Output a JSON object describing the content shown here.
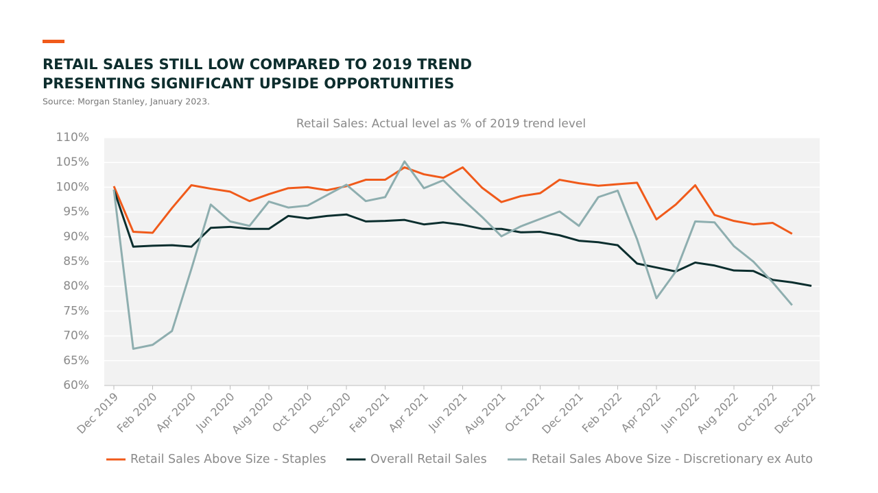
{
  "chart_data": {
    "type": "line",
    "title": [
      "RETAIL SALES STILL LOW COMPARED TO 2019 TREND",
      "PRESENTING SIGNIFICANT UPSIDE OPPORTUNITIES"
    ],
    "source": "Source: Morgan Stanley, January 2023.",
    "subtitle": "Retail Sales: Actual level as % of 2019 trend level",
    "categories": [
      "Dec 2019",
      null,
      "Feb 2020",
      null,
      "Apr 2020",
      null,
      "Jun 2020",
      null,
      "Aug 2020",
      null,
      "Oct 2020",
      null,
      "Dec 2020",
      null,
      "Feb 2021",
      null,
      "Apr 2021",
      null,
      "Jun 2021",
      null,
      "Aug 2021",
      null,
      "Oct 2021",
      null,
      "Dec 2021",
      null,
      "Feb 2022",
      null,
      "Apr 2022",
      null,
      "Jun 2022",
      null,
      "Aug 2022",
      null,
      "Oct 2022",
      null,
      "Dec 2022"
    ],
    "series": [
      {
        "name": "Retail Sales Above Size - Staples",
        "color": "#f05a1a",
        "values": [
          100.2,
          91,
          90.8,
          95.8,
          100.4,
          99.7,
          99.1,
          97.2,
          98.6,
          99.8,
          100,
          99.4,
          100.2,
          101.5,
          101.5,
          104,
          102.6,
          101.9,
          104,
          99.9,
          97,
          98.2,
          98.8,
          101.5,
          100.8,
          100.3,
          100.6,
          100.9,
          93.5,
          96.5,
          100.4,
          94.4,
          93.2,
          92.5,
          92.8,
          90.6,
          null
        ]
      },
      {
        "name": "Overall Retail Sales",
        "color": "#0b2e2e",
        "values": [
          99.5,
          88,
          88.2,
          88.3,
          88,
          91.8,
          92,
          91.6,
          91.6,
          94.2,
          93.7,
          94.2,
          94.5,
          93.1,
          93.2,
          93.4,
          92.5,
          92.9,
          92.4,
          91.6,
          91.6,
          90.9,
          91,
          90.3,
          89.2,
          88.9,
          88.3,
          84.6,
          83.8,
          83,
          84.8,
          84.2,
          83.2,
          83.1,
          81.3,
          80.8,
          80.1
        ]
      },
      {
        "name": "Retail Sales Above Size - Discretionary ex Auto",
        "color": "#8eaeaf",
        "values": [
          99.5,
          67.4,
          68.2,
          71,
          83.5,
          96.5,
          93.1,
          92.2,
          97.1,
          95.9,
          96.3,
          98.4,
          100.5,
          97.2,
          98,
          105.2,
          99.8,
          101.4,
          97.6,
          94,
          90.1,
          92.1,
          93.6,
          95.1,
          92.2,
          98,
          99.3,
          89.5,
          77.6,
          83,
          93.1,
          92.9,
          88.1,
          85,
          80.8,
          76.2,
          null
        ]
      }
    ],
    "ylim": [
      60,
      110
    ],
    "yticks": [
      {
        "value": 60,
        "label": "60%"
      },
      {
        "value": 65,
        "label": "65%"
      },
      {
        "value": 70,
        "label": "70%"
      },
      {
        "value": 75,
        "label": "75%"
      },
      {
        "value": 80,
        "label": "80%"
      },
      {
        "value": 85,
        "label": "85%"
      },
      {
        "value": 90,
        "label": "90%"
      },
      {
        "value": 95,
        "label": "95%"
      },
      {
        "value": 100,
        "label": "100%"
      },
      {
        "value": 105,
        "label": "105%"
      },
      {
        "value": 110,
        "label": "110%"
      }
    ],
    "grid": true,
    "legend": "bottom"
  }
}
